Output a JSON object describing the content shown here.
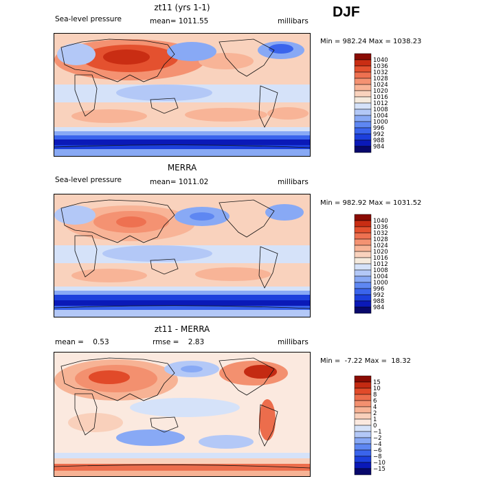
{
  "season": "DJF",
  "palettes": {
    "abs": [
      "#08086b",
      "#0a19b8",
      "#1c3fdc",
      "#3a64ec",
      "#5e87f2",
      "#88a9f5",
      "#b3c8f7",
      "#d5e2f9",
      "#f5eadd",
      "#f9d2bd",
      "#f8b497",
      "#f49272",
      "#ee7151",
      "#e4512f",
      "#c92d13",
      "#8a0b03"
    ],
    "diff": [
      "#08086b",
      "#0a19b8",
      "#1c3fdc",
      "#3a64ec",
      "#5e87f2",
      "#88a9f5",
      "#b3c8f7",
      "#d5e2f9",
      "#fbe9df",
      "#f9d0bb",
      "#f7b395",
      "#f3906f",
      "#ec6d4c",
      "#e14a29",
      "#c42a12",
      "#8a0b03"
    ],
    "land_outline": "#111111"
  },
  "panels": [
    {
      "id": "model",
      "title": "zt11 (yrs 1-1)",
      "left_label": "Sea-level pressure",
      "mid_label": "mean= 1011.55",
      "right_label": "millibars",
      "minmax": "Min = 982.24 Max = 1038.23",
      "levels": [
        "1040",
        "1036",
        "1032",
        "1028",
        "1024",
        "1020",
        "1016",
        "1012",
        "1008",
        "1004",
        "1000",
        "996",
        "992",
        "988",
        "984"
      ]
    },
    {
      "id": "obs",
      "title": "MERRA",
      "left_label": "Sea-level pressure",
      "mid_label": "mean= 1011.02",
      "right_label": "millibars",
      "minmax": "Min = 982.92 Max = 1031.52",
      "levels": [
        "1040",
        "1036",
        "1032",
        "1028",
        "1024",
        "1020",
        "1016",
        "1012",
        "1008",
        "1004",
        "1000",
        "996",
        "992",
        "988",
        "984"
      ]
    },
    {
      "id": "diff",
      "title": "zt11 - MERRA",
      "left_label": "mean =    0.53",
      "mid_label": "rmse =    2.83",
      "right_label": "millibars",
      "minmax": "Min =  -7.22 Max =  18.32",
      "levels": [
        "15",
        "10",
        "8",
        "6",
        "4",
        "2",
        "1",
        "0",
        "−1",
        "−2",
        "−4",
        "−6",
        "−8",
        "−10",
        "−15"
      ]
    }
  ]
}
